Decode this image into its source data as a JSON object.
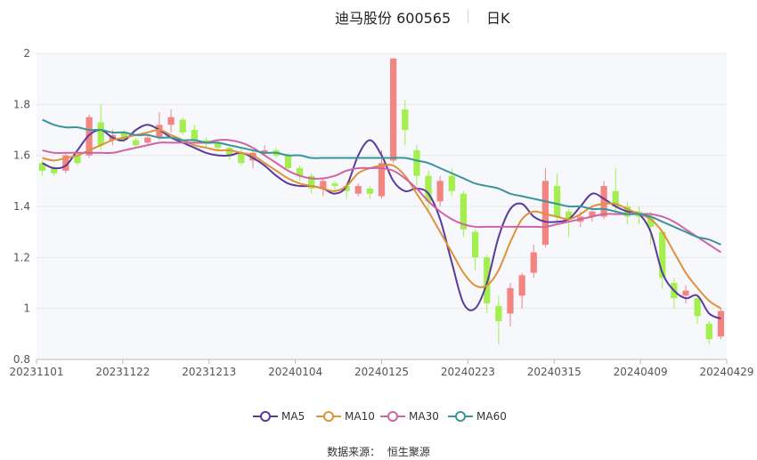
{
  "title": {
    "main": "迪马股份 600565",
    "sub": "日K"
  },
  "source": {
    "label": "数据来源：",
    "value": "恒生聚源"
  },
  "colors": {
    "up": "#f28582",
    "down": "#a2ef4d",
    "grid": "#e8e8e8",
    "plot_bg": "#f7f8fc"
  },
  "chart_data": {
    "type": "candlestick",
    "x_ticks": [
      "20231101",
      "20231122",
      "20231213",
      "20240104",
      "20240125",
      "20240223",
      "20240315",
      "20240409",
      "20240429"
    ],
    "y_ticks": [
      "0.8",
      "1",
      "1.2",
      "1.4",
      "1.6",
      "1.8",
      "2"
    ],
    "ylim": [
      0.8,
      2.0
    ],
    "grid": true,
    "legend_position": "bottom",
    "series": [
      {
        "name": "MA5",
        "color": "#5b3a9c",
        "values": [
          1.57,
          1.55,
          1.56,
          1.62,
          1.68,
          1.7,
          1.67,
          1.66,
          1.7,
          1.72,
          1.7,
          1.67,
          1.65,
          1.63,
          1.61,
          1.6,
          1.6,
          1.61,
          1.59,
          1.56,
          1.52,
          1.49,
          1.48,
          1.48,
          1.47,
          1.45,
          1.48,
          1.6,
          1.66,
          1.6,
          1.5,
          1.46,
          1.47,
          1.45,
          1.35,
          1.18,
          1.02,
          1.0,
          1.1,
          1.28,
          1.39,
          1.41,
          1.36,
          1.34,
          1.34,
          1.35,
          1.4,
          1.45,
          1.43,
          1.4,
          1.38,
          1.37,
          1.3,
          1.14,
          1.07,
          1.04,
          1.05,
          0.98,
          0.96
        ]
      },
      {
        "name": "MA10",
        "color": "#e0913a",
        "values": [
          1.59,
          1.58,
          1.59,
          1.6,
          1.62,
          1.64,
          1.66,
          1.67,
          1.68,
          1.69,
          1.7,
          1.68,
          1.66,
          1.64,
          1.63,
          1.62,
          1.62,
          1.61,
          1.6,
          1.57,
          1.54,
          1.51,
          1.49,
          1.48,
          1.47,
          1.46,
          1.48,
          1.53,
          1.55,
          1.56,
          1.56,
          1.52,
          1.45,
          1.38,
          1.3,
          1.22,
          1.14,
          1.09,
          1.09,
          1.15,
          1.26,
          1.35,
          1.38,
          1.37,
          1.36,
          1.35,
          1.37,
          1.4,
          1.41,
          1.41,
          1.39,
          1.37,
          1.35,
          1.3,
          1.22,
          1.14,
          1.08,
          1.03,
          1.0
        ]
      },
      {
        "name": "MA30",
        "color": "#d063a6",
        "values": [
          1.62,
          1.61,
          1.61,
          1.61,
          1.61,
          1.61,
          1.61,
          1.62,
          1.63,
          1.64,
          1.65,
          1.65,
          1.65,
          1.65,
          1.65,
          1.66,
          1.66,
          1.65,
          1.63,
          1.6,
          1.57,
          1.54,
          1.52,
          1.51,
          1.51,
          1.52,
          1.54,
          1.55,
          1.55,
          1.55,
          1.54,
          1.51,
          1.47,
          1.42,
          1.38,
          1.35,
          1.33,
          1.32,
          1.32,
          1.32,
          1.32,
          1.32,
          1.32,
          1.32,
          1.33,
          1.34,
          1.35,
          1.36,
          1.37,
          1.37,
          1.37,
          1.37,
          1.37,
          1.36,
          1.34,
          1.31,
          1.28,
          1.25,
          1.22
        ]
      },
      {
        "name": "MA60",
        "color": "#3a949a",
        "values": [
          1.74,
          1.72,
          1.71,
          1.71,
          1.7,
          1.7,
          1.69,
          1.69,
          1.68,
          1.68,
          1.67,
          1.67,
          1.66,
          1.66,
          1.65,
          1.65,
          1.64,
          1.63,
          1.62,
          1.61,
          1.61,
          1.6,
          1.6,
          1.59,
          1.59,
          1.59,
          1.59,
          1.59,
          1.59,
          1.59,
          1.59,
          1.59,
          1.58,
          1.57,
          1.55,
          1.53,
          1.51,
          1.49,
          1.48,
          1.47,
          1.45,
          1.44,
          1.43,
          1.42,
          1.41,
          1.4,
          1.4,
          1.39,
          1.39,
          1.38,
          1.37,
          1.37,
          1.36,
          1.34,
          1.32,
          1.3,
          1.28,
          1.27,
          1.25
        ]
      }
    ],
    "candles": [
      {
        "o": 1.57,
        "c": 1.54,
        "h": 1.58,
        "l": 1.52
      },
      {
        "o": 1.55,
        "c": 1.53,
        "h": 1.56,
        "l": 1.52
      },
      {
        "o": 1.54,
        "c": 1.6,
        "h": 1.61,
        "l": 1.53
      },
      {
        "o": 1.6,
        "c": 1.57,
        "h": 1.62,
        "l": 1.56
      },
      {
        "o": 1.6,
        "c": 1.75,
        "h": 1.76,
        "l": 1.59
      },
      {
        "o": 1.73,
        "c": 1.64,
        "h": 1.8,
        "l": 1.62
      },
      {
        "o": 1.66,
        "c": 1.68,
        "h": 1.7,
        "l": 1.64
      },
      {
        "o": 1.69,
        "c": 1.66,
        "h": 1.7,
        "l": 1.65
      },
      {
        "o": 1.66,
        "c": 1.64,
        "h": 1.67,
        "l": 1.63
      },
      {
        "o": 1.65,
        "c": 1.67,
        "h": 1.68,
        "l": 1.64
      },
      {
        "o": 1.67,
        "c": 1.72,
        "h": 1.77,
        "l": 1.66
      },
      {
        "o": 1.72,
        "c": 1.75,
        "h": 1.78,
        "l": 1.69
      },
      {
        "o": 1.74,
        "c": 1.69,
        "h": 1.75,
        "l": 1.68
      },
      {
        "o": 1.7,
        "c": 1.66,
        "h": 1.72,
        "l": 1.64
      },
      {
        "o": 1.66,
        "c": 1.65,
        "h": 1.67,
        "l": 1.63
      },
      {
        "o": 1.65,
        "c": 1.63,
        "h": 1.66,
        "l": 1.62
      },
      {
        "o": 1.63,
        "c": 1.6,
        "h": 1.64,
        "l": 1.58
      },
      {
        "o": 1.61,
        "c": 1.57,
        "h": 1.63,
        "l": 1.56
      },
      {
        "o": 1.58,
        "c": 1.61,
        "h": 1.62,
        "l": 1.55
      },
      {
        "o": 1.61,
        "c": 1.62,
        "h": 1.64,
        "l": 1.6
      },
      {
        "o": 1.62,
        "c": 1.6,
        "h": 1.63,
        "l": 1.59
      },
      {
        "o": 1.6,
        "c": 1.55,
        "h": 1.61,
        "l": 1.54
      },
      {
        "o": 1.55,
        "c": 1.52,
        "h": 1.56,
        "l": 1.5
      },
      {
        "o": 1.52,
        "c": 1.47,
        "h": 1.53,
        "l": 1.45
      },
      {
        "o": 1.47,
        "c": 1.5,
        "h": 1.51,
        "l": 1.44
      },
      {
        "o": 1.49,
        "c": 1.48,
        "h": 1.5,
        "l": 1.46
      },
      {
        "o": 1.48,
        "c": 1.46,
        "h": 1.49,
        "l": 1.43
      },
      {
        "o": 1.45,
        "c": 1.48,
        "h": 1.49,
        "l": 1.44
      },
      {
        "o": 1.47,
        "c": 1.45,
        "h": 1.48,
        "l": 1.43
      },
      {
        "o": 1.44,
        "c": 1.57,
        "h": 1.62,
        "l": 1.43
      },
      {
        "o": 1.58,
        "c": 1.98,
        "h": 1.98,
        "l": 1.57
      },
      {
        "o": 1.78,
        "c": 1.7,
        "h": 1.82,
        "l": 1.64
      },
      {
        "o": 1.62,
        "c": 1.52,
        "h": 1.64,
        "l": 1.48
      },
      {
        "o": 1.52,
        "c": 1.42,
        "h": 1.54,
        "l": 1.38
      },
      {
        "o": 1.42,
        "c": 1.5,
        "h": 1.52,
        "l": 1.4
      },
      {
        "o": 1.52,
        "c": 1.46,
        "h": 1.55,
        "l": 1.44
      },
      {
        "o": 1.45,
        "c": 1.31,
        "h": 1.46,
        "l": 1.28
      },
      {
        "o": 1.3,
        "c": 1.2,
        "h": 1.31,
        "l": 1.15
      },
      {
        "o": 1.2,
        "c": 1.02,
        "h": 1.21,
        "l": 0.98
      },
      {
        "o": 1.01,
        "c": 0.95,
        "h": 1.05,
        "l": 0.86
      },
      {
        "o": 0.98,
        "c": 1.08,
        "h": 1.1,
        "l": 0.93
      },
      {
        "o": 1.05,
        "c": 1.13,
        "h": 1.14,
        "l": 1.0
      },
      {
        "o": 1.14,
        "c": 1.22,
        "h": 1.25,
        "l": 1.12
      },
      {
        "o": 1.25,
        "c": 1.5,
        "h": 1.55,
        "l": 1.24
      },
      {
        "o": 1.48,
        "c": 1.36,
        "h": 1.53,
        "l": 1.33
      },
      {
        "o": 1.38,
        "c": 1.35,
        "h": 1.39,
        "l": 1.28
      },
      {
        "o": 1.34,
        "c": 1.36,
        "h": 1.38,
        "l": 1.32
      },
      {
        "o": 1.36,
        "c": 1.38,
        "h": 1.4,
        "l": 1.34
      },
      {
        "o": 1.36,
        "c": 1.48,
        "h": 1.5,
        "l": 1.35
      },
      {
        "o": 1.46,
        "c": 1.4,
        "h": 1.55,
        "l": 1.37
      },
      {
        "o": 1.4,
        "c": 1.36,
        "h": 1.42,
        "l": 1.33
      },
      {
        "o": 1.38,
        "c": 1.36,
        "h": 1.4,
        "l": 1.33
      },
      {
        "o": 1.36,
        "c": 1.32,
        "h": 1.38,
        "l": 1.25
      },
      {
        "o": 1.3,
        "c": 1.12,
        "h": 1.31,
        "l": 1.08
      },
      {
        "o": 1.1,
        "c": 1.04,
        "h": 1.12,
        "l": 1.0
      },
      {
        "o": 1.05,
        "c": 1.07,
        "h": 1.09,
        "l": 1.02
      },
      {
        "o": 1.04,
        "c": 0.97,
        "h": 1.05,
        "l": 0.94
      },
      {
        "o": 0.94,
        "c": 0.88,
        "h": 0.95,
        "l": 0.86
      },
      {
        "o": 0.89,
        "c": 0.99,
        "h": 1.0,
        "l": 0.88
      }
    ]
  }
}
